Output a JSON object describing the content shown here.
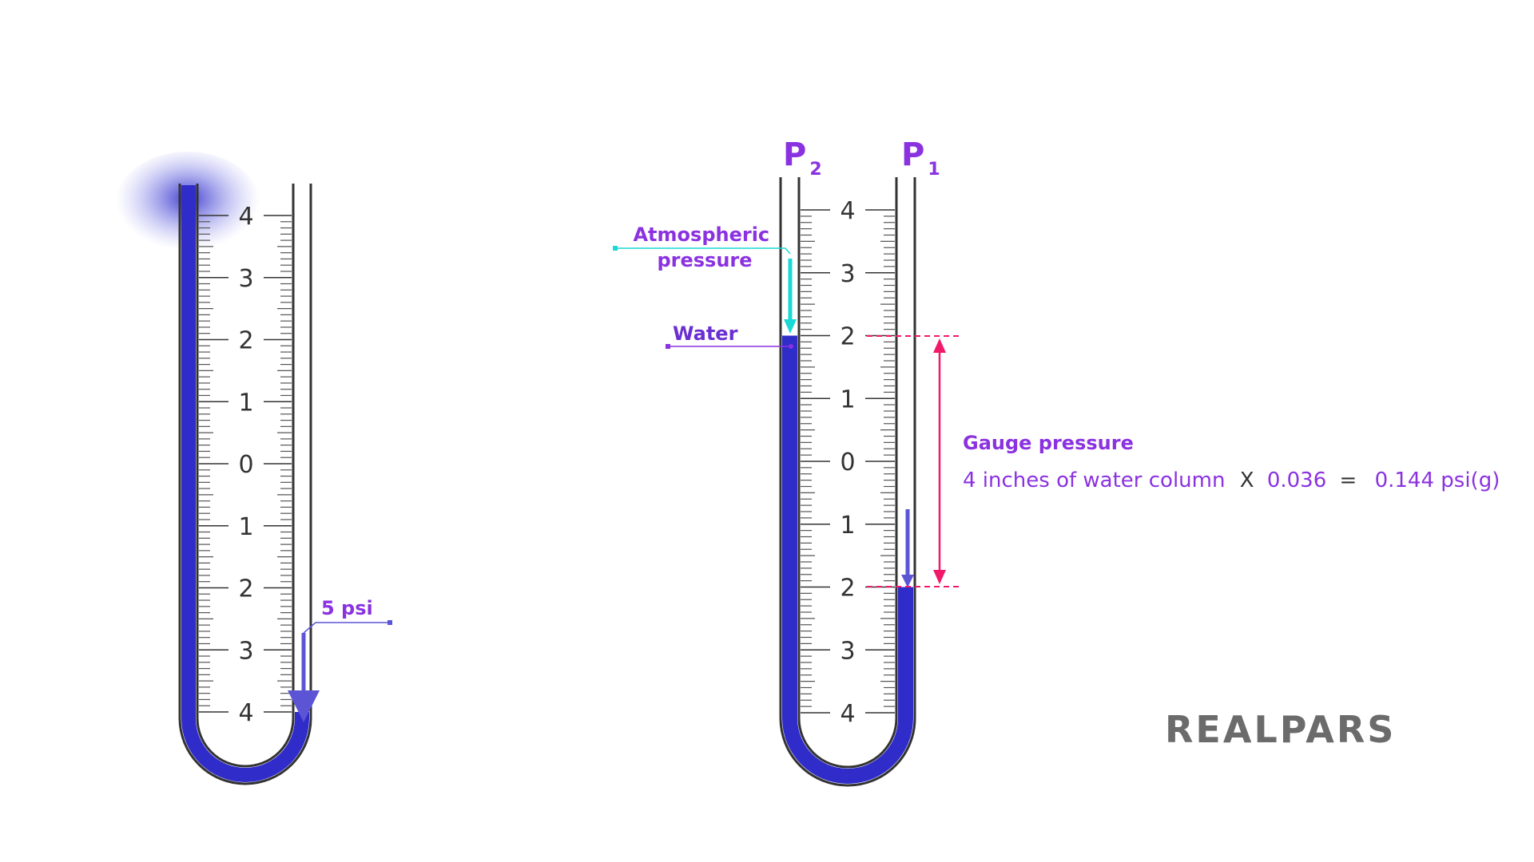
{
  "colors": {
    "water": "#2f2cc9",
    "label_purple": "#8b32e0",
    "atmos_cyan": "#19d9d6",
    "gauge_red": "#f0196a",
    "arrow_blue": "#5b55d6",
    "tube": "#333333",
    "logo": "#6b6b6b"
  },
  "left_manometer": {
    "scale_labels": [
      "4",
      "3",
      "2",
      "1",
      "0",
      "1",
      "2",
      "3",
      "4"
    ],
    "pressure_label": "5 psi",
    "water_top_level": 4,
    "water_bottom_level": -4
  },
  "right_manometer": {
    "port_left": {
      "letter": "P",
      "subscript": "2"
    },
    "port_right": {
      "letter": "P",
      "subscript": "1"
    },
    "scale_labels": [
      "4",
      "3",
      "2",
      "1",
      "0",
      "1",
      "2",
      "3",
      "4"
    ],
    "water_left_level": 2,
    "water_right_level": -2,
    "atmospheric_label_line1": "Atmospheric",
    "atmospheric_label_line2": "pressure",
    "water_label": "Water",
    "gauge_title": "Gauge pressure",
    "equation_part1": "4 inches of water column",
    "equation_times": "X",
    "equation_factor": "0.036",
    "equation_equals": "=",
    "equation_result": "0.144 psi(g)"
  },
  "logo_text": "REALPARS"
}
